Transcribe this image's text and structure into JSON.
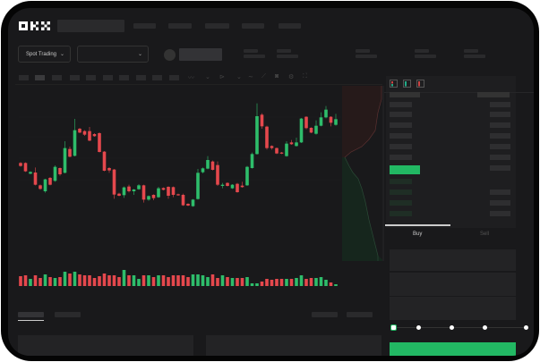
{
  "header": {
    "logo": "OKX",
    "nav_count": 5
  },
  "toolbar": {
    "market_select": "Spot Trading",
    "pair_select": ""
  },
  "order_form": {
    "buy_label": "Buy",
    "sell_label": "Sell",
    "slider_value_percent": 0
  },
  "colors": {
    "up": "#2ebd6b",
    "down": "#e5484d",
    "background": "#19191b",
    "accent": "#22b863"
  },
  "candles": {
    "fields": [
      "open",
      "high",
      "low",
      "close"
    ],
    "values": [
      [
        155,
        158,
        142,
        145
      ],
      [
        155,
        157,
        125,
        127
      ],
      [
        119,
        127,
        117,
        125
      ],
      [
        123,
        140,
        80,
        82
      ],
      [
        80,
        83,
        65,
        68
      ],
      [
        60,
        102,
        55,
        100
      ],
      [
        105,
        108,
        80,
        82
      ],
      [
        95,
        147,
        92,
        142
      ],
      [
        138,
        140,
        112,
        117
      ],
      [
        122,
        228,
        120,
        205
      ],
      [
        202,
        210,
        174,
        176
      ],
      [
        179,
        303,
        177,
        265
      ],
      [
        270,
        273,
        255,
        257
      ],
      [
        262,
        265,
        246,
        250
      ],
      [
        262,
        276,
        228,
        230
      ],
      [
        252,
        255,
        243,
        245
      ],
      [
        255,
        258,
        190,
        192
      ],
      [
        193,
        195,
        127,
        129
      ],
      [
        138,
        141,
        122,
        130
      ],
      [
        133,
        135,
        35,
        49
      ],
      [
        52,
        55,
        43,
        45
      ],
      [
        47,
        76,
        38,
        73
      ],
      [
        76,
        82,
        56,
        60
      ],
      [
        60,
        68,
        48,
        66
      ],
      [
        67,
        84,
        65,
        80
      ],
      [
        80,
        82,
        22,
        32
      ],
      [
        32,
        46,
        28,
        44
      ],
      [
        48,
        50,
        30,
        37
      ],
      [
        40,
        75,
        38,
        70
      ],
      [
        71,
        73,
        63,
        65
      ],
      [
        75,
        77,
        35,
        45
      ],
      [
        74,
        76,
        40,
        48
      ],
      [
        50,
        52,
        45,
        47
      ],
      [
        48,
        52,
        11,
        13
      ],
      [
        18,
        20,
        10,
        12
      ],
      [
        10,
        34,
        8,
        32
      ],
      [
        34,
        135,
        32,
        122
      ],
      [
        124,
        140,
        120,
        137
      ],
      [
        136,
        178,
        134,
        165
      ],
      [
        160,
        163,
        130,
        132
      ],
      [
        148,
        160,
        78,
        82
      ],
      [
        78,
        88,
        70,
        82
      ],
      [
        88,
        90,
        76,
        78
      ],
      [
        70,
        84,
        68,
        82
      ],
      [
        85,
        88,
        55,
        57
      ],
      [
        79,
        92,
        72,
        74
      ],
      [
        80,
        145,
        78,
        142
      ],
      [
        138,
        190,
        136,
        185
      ],
      [
        185,
        355,
        183,
        312
      ],
      [
        317,
        322,
        270,
        278
      ],
      [
        277,
        280,
        200,
        205
      ],
      [
        212,
        214,
        200,
        205
      ],
      [
        205,
        207,
        185,
        187
      ],
      [
        190,
        192,
        185,
        187
      ],
      [
        178,
        228,
        176,
        220
      ],
      [
        224,
        232,
        216,
        218
      ],
      [
        212,
        240,
        210,
        224
      ],
      [
        224,
        306,
        222,
        304
      ],
      [
        310,
        312,
        268,
        272
      ],
      [
        273,
        275,
        255,
        257
      ],
      [
        253,
        298,
        250,
        280
      ],
      [
        280,
        325,
        278,
        308
      ],
      [
        308,
        346,
        305,
        334
      ],
      [
        310,
        312,
        278,
        290
      ],
      [
        283,
        320,
        280,
        302
      ]
    ]
  },
  "volume": [
    11,
    12,
    8,
    12,
    9,
    13,
    10,
    9,
    10,
    16,
    14,
    16,
    13,
    12,
    12,
    9,
    11,
    14,
    12,
    12,
    10,
    18,
    12,
    12,
    8,
    12,
    12,
    10,
    12,
    12,
    10,
    12,
    12,
    12,
    10,
    13,
    13,
    12,
    10,
    13,
    9,
    12,
    10,
    9,
    9,
    9,
    10,
    3,
    3,
    5,
    8,
    7,
    8,
    8,
    8,
    8,
    9,
    12,
    8,
    9,
    9,
    10,
    7,
    4,
    2
  ]
}
